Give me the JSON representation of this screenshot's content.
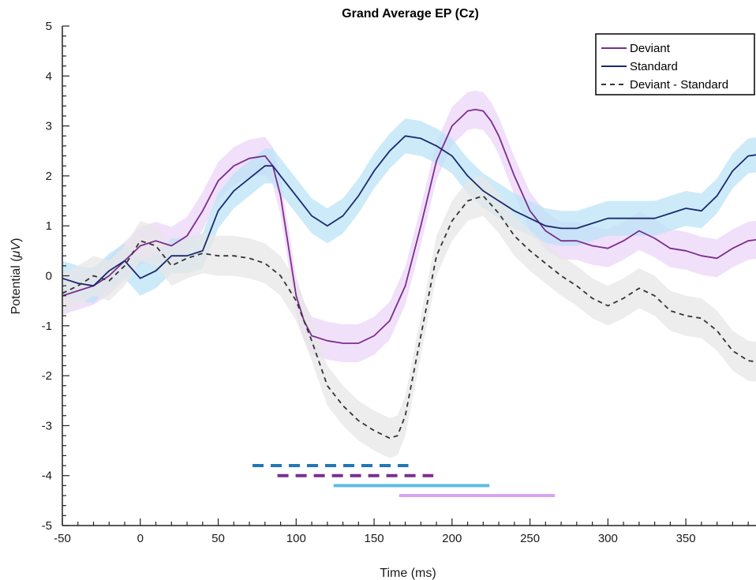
{
  "chart_data": {
    "type": "line",
    "title": "Grand Average EP (Cz)",
    "xlabel": "Time (ms)",
    "ylabel_main": "Potential (",
    "ylabel_unit": "μV",
    "ylabel_close": ")",
    "xlim": [
      -50,
      395
    ],
    "ylim": [
      -5,
      5
    ],
    "xticks": [
      -50,
      0,
      50,
      100,
      150,
      200,
      250,
      300,
      350
    ],
    "yticks": [
      -5,
      -4,
      -3,
      -2,
      -1,
      0,
      1,
      2,
      3,
      4,
      5
    ],
    "grid": false,
    "legend_position": "top-right",
    "series": [
      {
        "name": "Deviant",
        "color": "#7b2d8e",
        "band_color": "#ecd5f8",
        "band": 0.38,
        "dash": "solid",
        "x": [
          -50,
          -40,
          -30,
          -20,
          -10,
          0,
          10,
          20,
          30,
          40,
          50,
          60,
          70,
          80,
          85,
          90,
          95,
          100,
          105,
          110,
          120,
          130,
          140,
          150,
          160,
          170,
          180,
          190,
          200,
          210,
          215,
          220,
          225,
          230,
          240,
          250,
          260,
          270,
          280,
          290,
          300,
          310,
          320,
          330,
          340,
          350,
          360,
          370,
          380,
          390,
          395
        ],
        "y": [
          -0.4,
          -0.3,
          -0.2,
          0.0,
          0.3,
          0.6,
          0.7,
          0.6,
          0.8,
          1.3,
          1.9,
          2.2,
          2.35,
          2.4,
          2.2,
          1.6,
          0.6,
          -0.4,
          -0.9,
          -1.2,
          -1.3,
          -1.35,
          -1.35,
          -1.2,
          -0.9,
          -0.2,
          1.0,
          2.3,
          3.0,
          3.3,
          3.33,
          3.3,
          3.1,
          2.8,
          2.0,
          1.3,
          0.9,
          0.7,
          0.7,
          0.6,
          0.55,
          0.7,
          0.9,
          0.75,
          0.55,
          0.5,
          0.4,
          0.35,
          0.55,
          0.7,
          0.72
        ]
      },
      {
        "name": "Standard",
        "color": "#1b2a6e",
        "band_color": "#bce3f7",
        "band": 0.35,
        "dash": "solid",
        "x": [
          -50,
          -40,
          -30,
          -20,
          -10,
          0,
          10,
          20,
          30,
          40,
          50,
          60,
          70,
          80,
          85,
          90,
          100,
          110,
          120,
          130,
          140,
          150,
          160,
          170,
          180,
          190,
          200,
          210,
          220,
          230,
          240,
          250,
          260,
          270,
          280,
          290,
          300,
          310,
          320,
          330,
          340,
          350,
          360,
          370,
          380,
          390,
          395
        ],
        "y": [
          -0.05,
          -0.15,
          -0.2,
          0.1,
          0.3,
          -0.05,
          0.1,
          0.4,
          0.4,
          0.5,
          1.3,
          1.7,
          1.95,
          2.2,
          2.2,
          2.0,
          1.6,
          1.2,
          1.0,
          1.2,
          1.6,
          2.1,
          2.5,
          2.8,
          2.75,
          2.6,
          2.4,
          2.0,
          1.7,
          1.5,
          1.3,
          1.15,
          1.0,
          0.95,
          0.95,
          1.05,
          1.15,
          1.15,
          1.15,
          1.15,
          1.25,
          1.35,
          1.3,
          1.6,
          2.1,
          2.4,
          2.42
        ]
      },
      {
        "name": "Deviant - Standard",
        "color": "#333333",
        "band_color": "#e7e7e7",
        "band": 0.4,
        "dash": "6,5",
        "x": [
          -50,
          -40,
          -30,
          -20,
          -10,
          0,
          10,
          20,
          30,
          40,
          50,
          60,
          70,
          80,
          90,
          100,
          110,
          120,
          130,
          140,
          150,
          160,
          165,
          170,
          180,
          190,
          200,
          210,
          220,
          230,
          240,
          250,
          260,
          270,
          280,
          290,
          300,
          310,
          320,
          330,
          340,
          350,
          360,
          370,
          380,
          390,
          395
        ],
        "y": [
          -0.35,
          -0.2,
          0.0,
          -0.1,
          0.2,
          0.7,
          0.6,
          0.2,
          0.35,
          0.45,
          0.4,
          0.4,
          0.35,
          0.25,
          0.0,
          -0.5,
          -1.3,
          -2.2,
          -2.6,
          -2.9,
          -3.1,
          -3.25,
          -3.2,
          -2.8,
          -1.2,
          0.4,
          1.1,
          1.5,
          1.6,
          1.25,
          0.8,
          0.5,
          0.25,
          0.0,
          -0.2,
          -0.45,
          -0.6,
          -0.45,
          -0.25,
          -0.4,
          -0.7,
          -0.8,
          -0.85,
          -1.1,
          -1.5,
          -1.7,
          -1.72
        ]
      }
    ],
    "significance_bars": [
      {
        "color": "#2277b6",
        "dash": "14,9",
        "y": -3.8,
        "x": [
          72,
          172
        ]
      },
      {
        "color": "#7b2d8e",
        "dash": "14,9",
        "y": -4.0,
        "x": [
          88,
          188
        ]
      },
      {
        "color": "#5cbde6",
        "dash": "solid",
        "y": -4.2,
        "x": [
          124,
          224
        ]
      },
      {
        "color": "#d8a4f0",
        "dash": "solid",
        "y": -4.4,
        "x": [
          166,
          266
        ]
      }
    ]
  }
}
